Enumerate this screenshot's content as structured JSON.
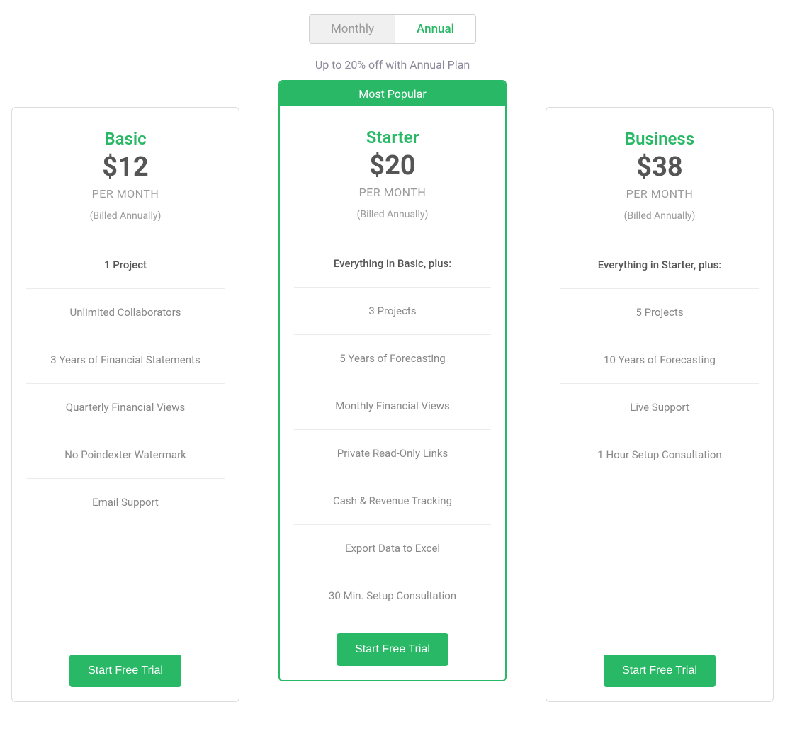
{
  "toggle": {
    "monthly": "Monthly",
    "annual": "Annual"
  },
  "discount": "Up to 20% off with Annual Plan",
  "colors": {
    "accent": "#29b866",
    "text_muted": "#999999",
    "text_heading": "#555555",
    "border": "#dcdcdc"
  },
  "plans": [
    {
      "name": "Basic",
      "price": "$12",
      "period": "PER MONTH",
      "billed": "(Billed Annually)",
      "featured": false,
      "badge": "",
      "features_header": "1 Project",
      "features": [
        "Unlimited Collaborators",
        "3 Years of Financial Statements",
        "Quarterly Financial Views",
        "No Poindexter Watermark",
        "Email Support"
      ],
      "cta": "Start Free Trial"
    },
    {
      "name": "Starter",
      "price": "$20",
      "period": "PER MONTH",
      "billed": "(Billed Annually)",
      "featured": true,
      "badge": "Most Popular",
      "features_header": "Everything in Basic, plus:",
      "features": [
        "3 Projects",
        "5 Years of Forecasting",
        "Monthly Financial Views",
        "Private Read-Only Links",
        "Cash & Revenue Tracking",
        "Export Data to Excel",
        "30 Min. Setup Consultation"
      ],
      "cta": "Start Free Trial"
    },
    {
      "name": "Business",
      "price": "$38",
      "period": "PER MONTH",
      "billed": "(Billed Annually)",
      "featured": false,
      "badge": "",
      "features_header": "Everything in Starter, plus:",
      "features": [
        "5 Projects",
        "10 Years of Forecasting",
        "Live Support",
        "1 Hour Setup Consultation"
      ],
      "cta": "Start Free Trial"
    }
  ]
}
